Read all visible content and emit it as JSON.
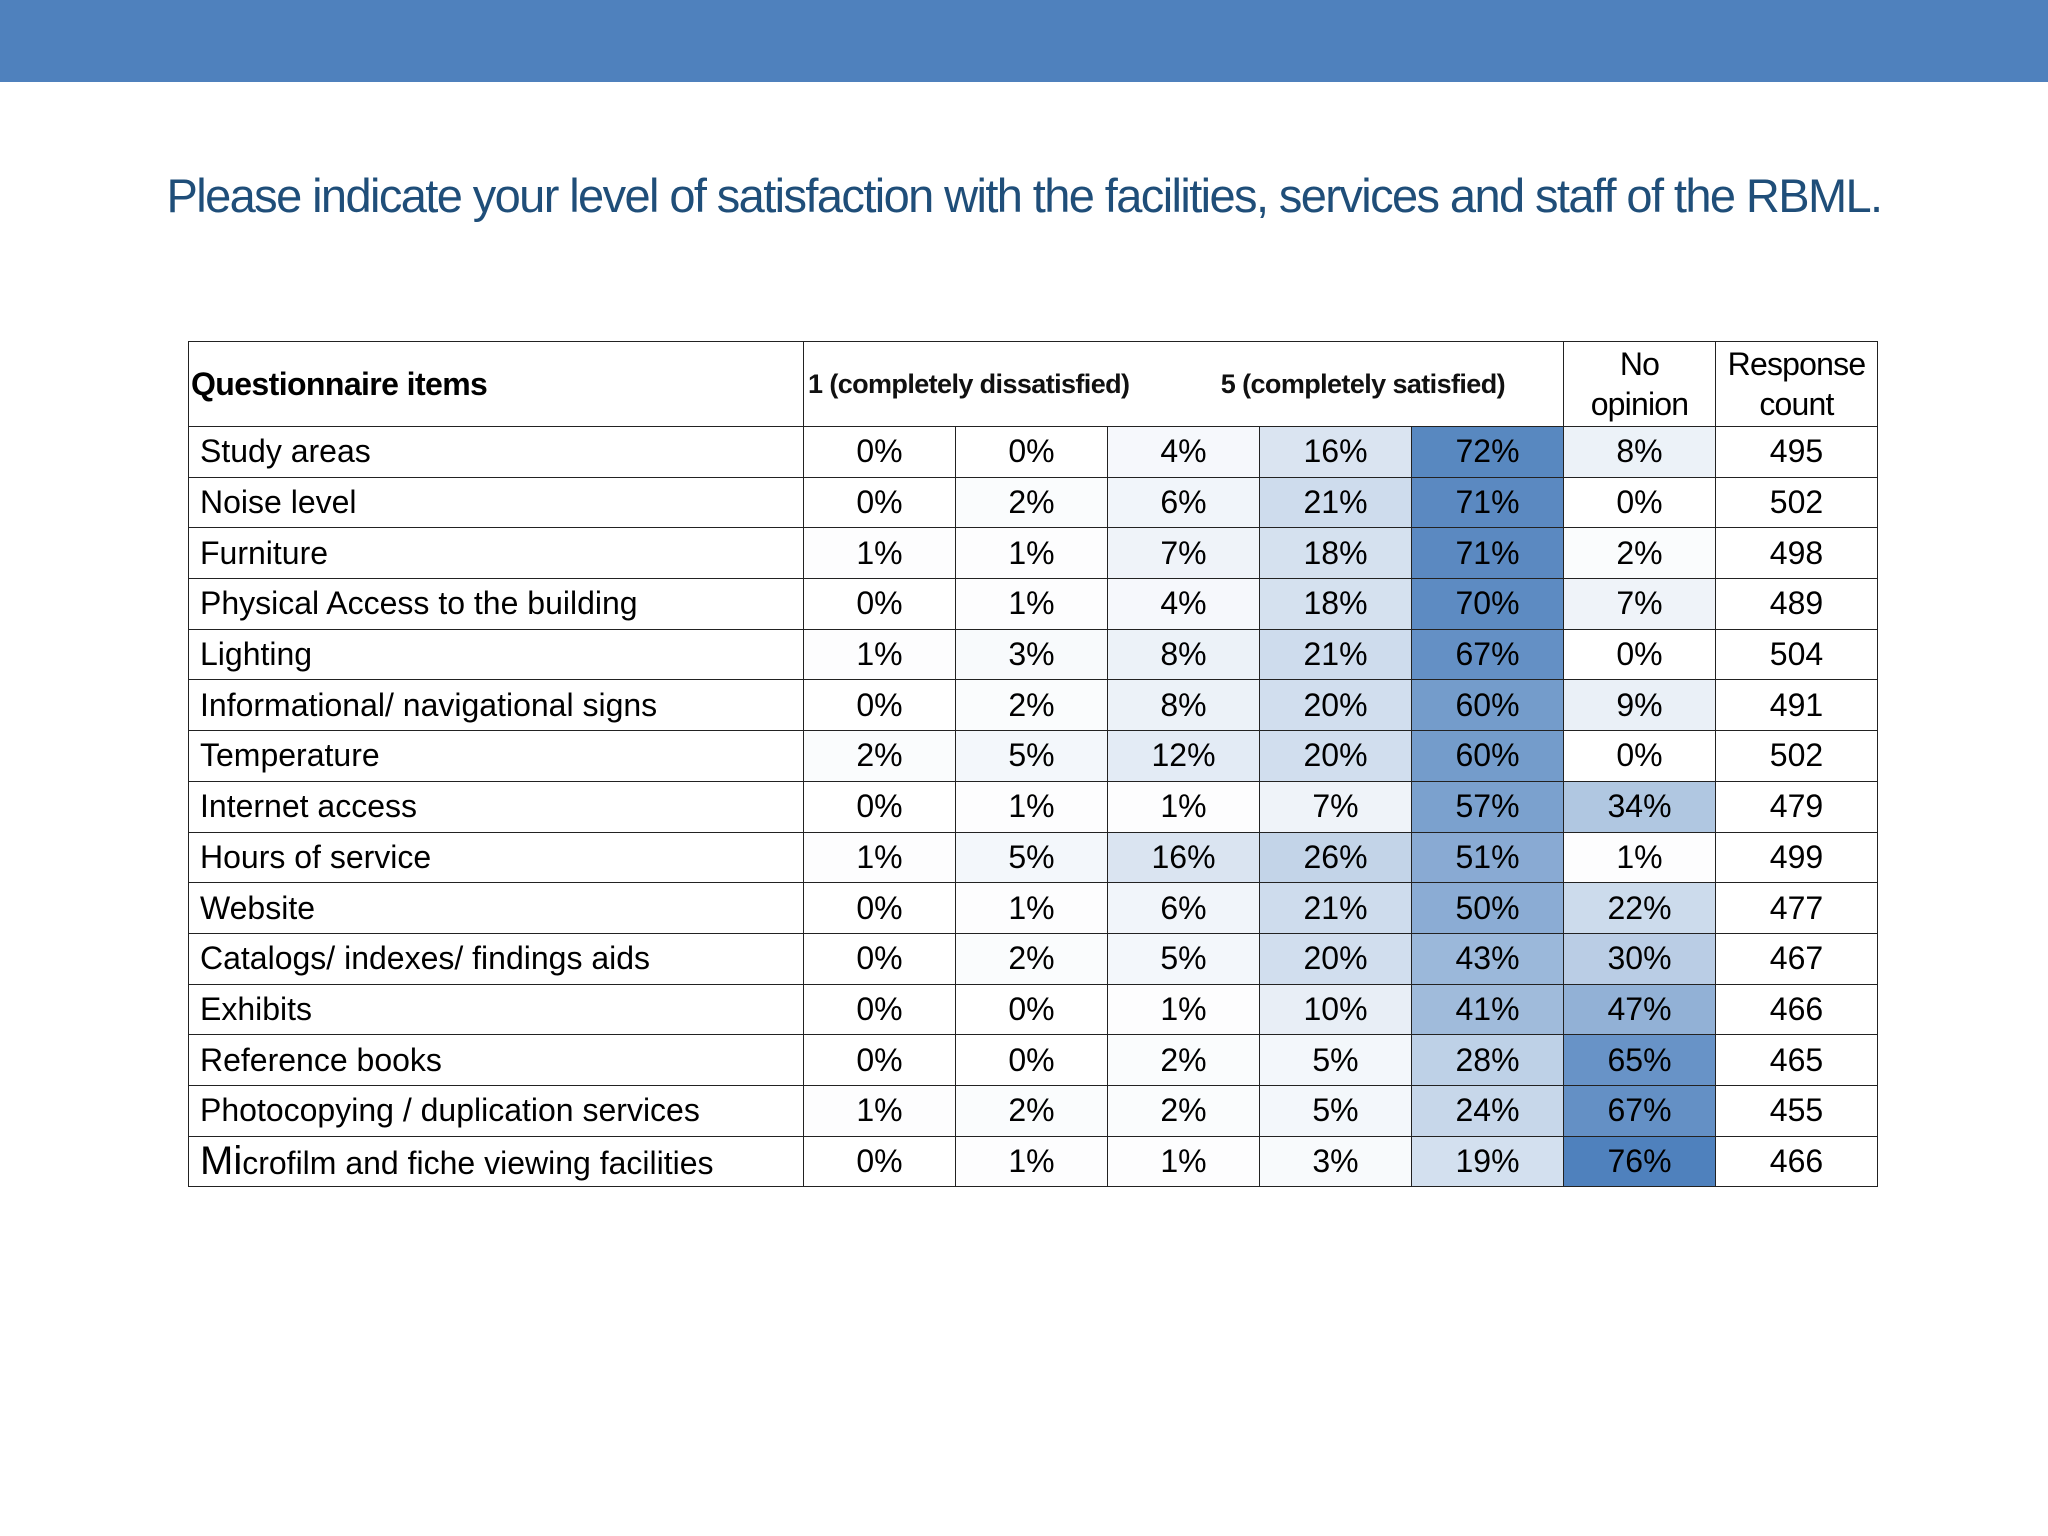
{
  "slide": {
    "title": "Please indicate your level of satisfaction with the facilities, services and staff of the RBML.",
    "accent_color": "#4f81bd",
    "title_color": "#1f4e79"
  },
  "table": {
    "headers": {
      "items": "Questionnaire items",
      "scale_low": "1 (completely dissatisfied)",
      "scale_high": "5 (completely satisfied)",
      "no_opinion_line1": "No",
      "no_opinion_line2": "opinion",
      "response_line1": "Response",
      "response_line2": "count"
    },
    "rows": [
      {
        "item": "Study areas",
        "values": [
          "0%",
          "0%",
          "4%",
          "16%",
          "72%",
          "8%",
          "495"
        ]
      },
      {
        "item": "Noise level",
        "values": [
          "0%",
          "2%",
          "6%",
          "21%",
          "71%",
          "0%",
          "502"
        ]
      },
      {
        "item": "Furniture",
        "values": [
          "1%",
          "1%",
          "7%",
          "18%",
          "71%",
          "2%",
          "498"
        ]
      },
      {
        "item": "Physical Access to the building",
        "values": [
          "0%",
          "1%",
          "4%",
          "18%",
          "70%",
          "7%",
          "489"
        ]
      },
      {
        "item": "Lighting",
        "values": [
          "1%",
          "3%",
          "8%",
          "21%",
          "67%",
          "0%",
          "504"
        ]
      },
      {
        "item": "Informational/ navigational signs",
        "values": [
          "0%",
          "2%",
          "8%",
          "20%",
          "60%",
          "9%",
          "491"
        ]
      },
      {
        "item": "Temperature",
        "values": [
          "2%",
          "5%",
          "12%",
          "20%",
          "60%",
          "0%",
          "502"
        ]
      },
      {
        "item": "Internet access",
        "values": [
          "0%",
          "1%",
          "1%",
          "7%",
          "57%",
          "34%",
          "479"
        ]
      },
      {
        "item": "Hours of service",
        "values": [
          "1%",
          "5%",
          "16%",
          "26%",
          "51%",
          "1%",
          "499"
        ]
      },
      {
        "item": "Website",
        "values": [
          "0%",
          "1%",
          "6%",
          "21%",
          "50%",
          "22%",
          "477"
        ]
      },
      {
        "item": "Catalogs/ indexes/ findings aids",
        "values": [
          "0%",
          "2%",
          "5%",
          "20%",
          "43%",
          "30%",
          "467"
        ]
      },
      {
        "item": "Exhibits",
        "values": [
          "0%",
          "0%",
          "1%",
          "10%",
          "41%",
          "47%",
          "466"
        ]
      },
      {
        "item": "Reference books",
        "values": [
          "0%",
          "0%",
          "2%",
          "5%",
          "28%",
          "65%",
          "465"
        ]
      },
      {
        "item": "Photocopying / duplication services",
        "values": [
          "1%",
          "2%",
          "2%",
          "5%",
          "24%",
          "67%",
          "455"
        ]
      },
      {
        "item_first": "Mi",
        "item_rest": "crofilm and fiche viewing facilities",
        "values": [
          "0%",
          "1%",
          "1%",
          "3%",
          "19%",
          "76%",
          "466"
        ]
      }
    ]
  },
  "chart_data": {
    "type": "heatmap",
    "title": "Please indicate your level of satisfaction with the facilities, services and staff of the RBML.",
    "row_header": "Questionnaire items",
    "columns": [
      "1 (completely dissatisfied)",
      "",
      "",
      "",
      "5 (completely satisfied)",
      "No opinion",
      "Response count"
    ],
    "rows": [
      "Study areas",
      "Noise level",
      "Furniture",
      "Physical Access to the building",
      "Lighting",
      "Informational/ navigational signs",
      "Temperature",
      "Internet access",
      "Hours of service",
      "Website",
      "Catalogs/ indexes/ findings aids",
      "Exhibits",
      "Reference books",
      "Photocopying / duplication services",
      "Microfilm and fiche viewing facilities"
    ],
    "values": [
      [
        0,
        0,
        4,
        16,
        72,
        8,
        495
      ],
      [
        0,
        2,
        6,
        21,
        71,
        0,
        502
      ],
      [
        1,
        1,
        7,
        18,
        71,
        2,
        498
      ],
      [
        0,
        1,
        4,
        18,
        70,
        7,
        489
      ],
      [
        1,
        3,
        8,
        21,
        67,
        0,
        504
      ],
      [
        0,
        2,
        8,
        20,
        60,
        9,
        491
      ],
      [
        2,
        5,
        12,
        20,
        60,
        0,
        502
      ],
      [
        0,
        1,
        1,
        7,
        57,
        34,
        479
      ],
      [
        1,
        5,
        16,
        26,
        51,
        1,
        499
      ],
      [
        0,
        1,
        6,
        21,
        50,
        22,
        477
      ],
      [
        0,
        2,
        5,
        20,
        43,
        30,
        467
      ],
      [
        0,
        0,
        1,
        10,
        41,
        47,
        466
      ],
      [
        0,
        0,
        2,
        5,
        28,
        65,
        465
      ],
      [
        1,
        2,
        2,
        5,
        24,
        67,
        455
      ],
      [
        0,
        1,
        1,
        3,
        19,
        76,
        466
      ]
    ],
    "heat_color": "#4f81bd"
  }
}
